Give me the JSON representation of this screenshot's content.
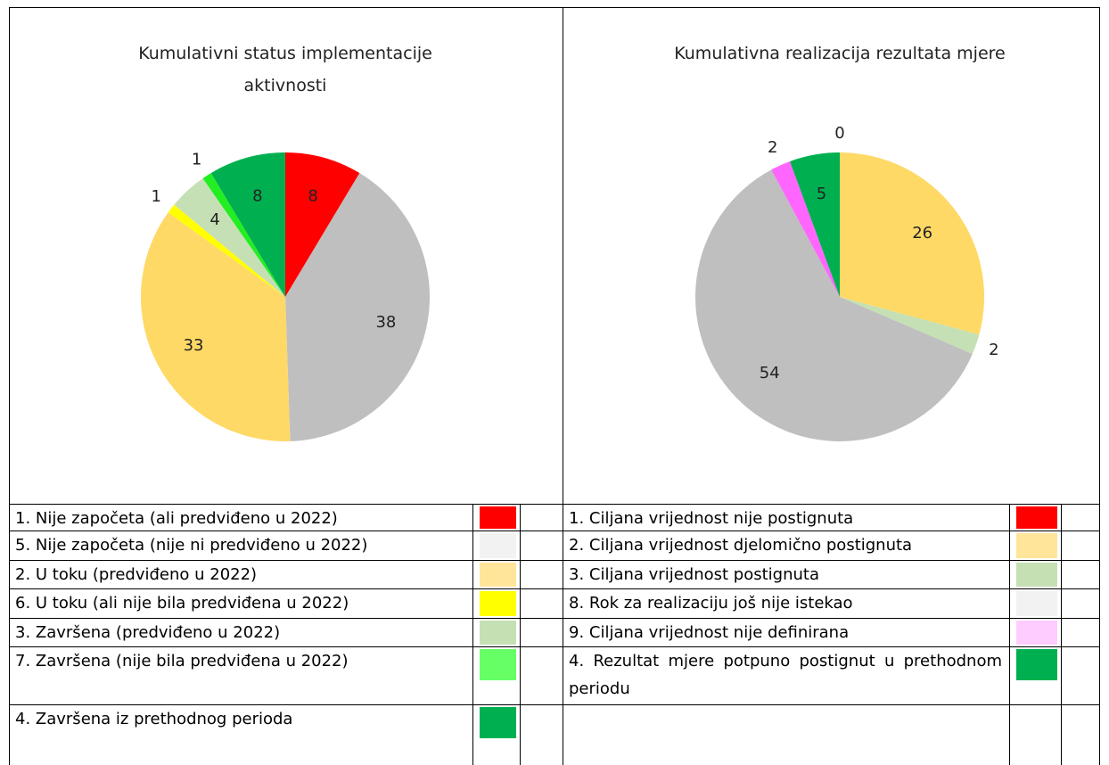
{
  "chart_data": [
    {
      "type": "pie",
      "title": "Kumulativni status implementacije aktivnosti",
      "values": [
        8,
        38,
        33,
        1,
        4,
        1,
        8
      ],
      "colors": [
        "#ff0000",
        "#bfbfbf",
        "#ffd966",
        "#ffff00",
        "#c5e0b4",
        "#22ee22",
        "#00b050"
      ]
    },
    {
      "type": "pie",
      "title": "Kumulativna realizacija rezultata mjere",
      "values": [
        26,
        2,
        54,
        2,
        5,
        0
      ],
      "colors": [
        "#ffd966",
        "#c5e0b4",
        "#bfbfbf",
        "#ff66ff",
        "#00b050",
        "#ff0000"
      ]
    }
  ],
  "legends": [
    {
      "rows": [
        {
          "label": "1. Nije započeta (ali predviđeno u 2022)",
          "color": "#ff0000"
        },
        {
          "label": "5. Nije započeta (nije ni predviđeno u 2022)",
          "color": "#f2f2f2"
        },
        {
          "label": "2. U toku (predviđeno u 2022)",
          "color": "#ffe599"
        },
        {
          "label": "6. U toku (ali nije bila predviđena u 2022)",
          "color": "#ffff00"
        },
        {
          "label": "3. Završena (predviđeno u 2022)",
          "color": "#c5e0b3"
        },
        {
          "label": "7. Završena (nije bila predviđena u 2022)",
          "color": "#66ff66"
        },
        {
          "label": "4.  Završena iz prethodnog perioda",
          "color": "#00b050"
        }
      ]
    },
    {
      "rows": [
        {
          "label": "1. Ciljana vrijednost nije postignuta",
          "color": "#ff0000"
        },
        {
          "label": "2. Ciljana vrijednost djelomično postignuta",
          "color": "#ffe599"
        },
        {
          "label": "3. Ciljana vrijednost postignuta",
          "color": "#c5e0b3"
        },
        {
          "label": "8. Rok za realizaciju još nije istekao",
          "color": "#f2f2f2"
        },
        {
          "label": "9. Ciljana vrijednost nije definirana",
          "color": "#ffccff"
        },
        {
          "label": "4. Rezultat mjere potpuno postignut u prethodnom periodu",
          "color": "#00b050"
        }
      ]
    }
  ]
}
